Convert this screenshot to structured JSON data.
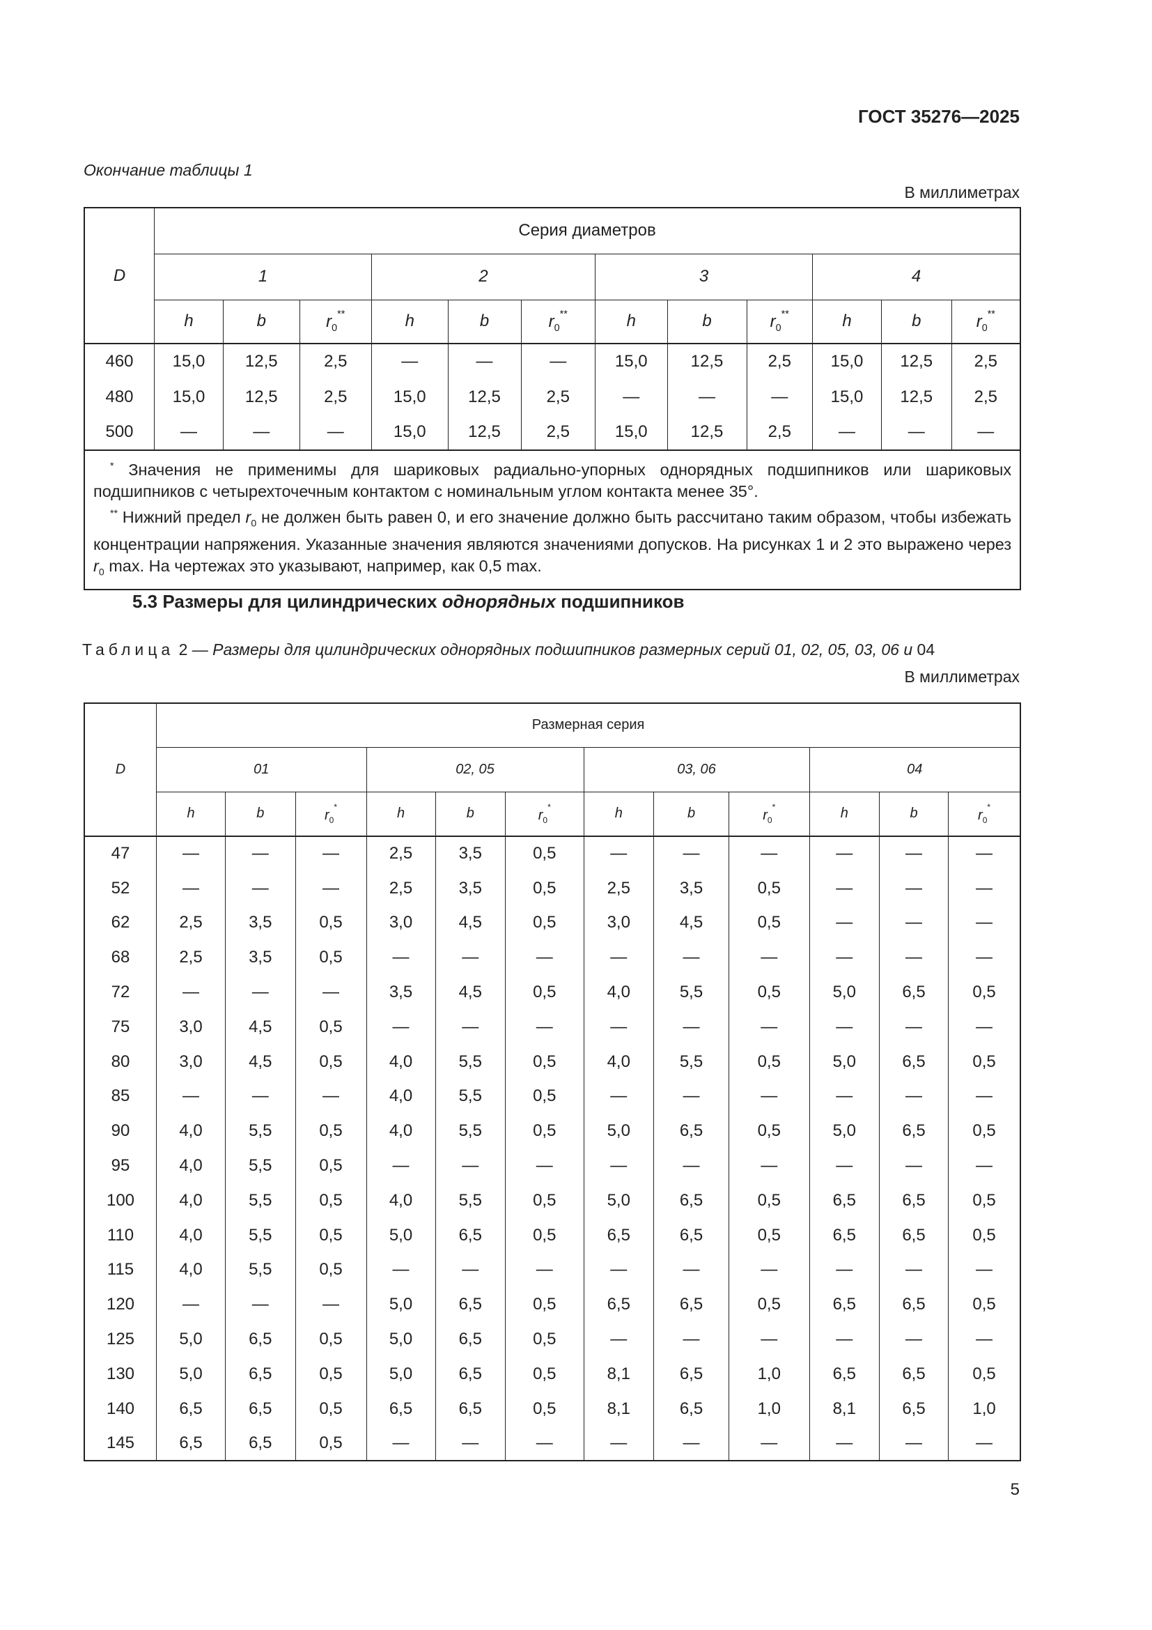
{
  "header": {
    "doc_id": "ГОСТ 35276—2025"
  },
  "table1": {
    "caption": "Окончание таблицы 1",
    "units": "В миллиметрах",
    "col_d": "D",
    "group_title": "Серия диаметров",
    "groups": [
      "1",
      "2",
      "3",
      "4"
    ],
    "subcols": [
      {
        "main": "h"
      },
      {
        "main": "b"
      },
      {
        "main": "r",
        "sub": "0",
        "sup": "**"
      }
    ],
    "rows": [
      [
        "460",
        "15,0",
        "12,5",
        "2,5",
        "—",
        "—",
        "—",
        "15,0",
        "12,5",
        "2,5",
        "15,0",
        "12,5",
        "2,5"
      ],
      [
        "480",
        "15,0",
        "12,5",
        "2,5",
        "15,0",
        "12,5",
        "2,5",
        "—",
        "—",
        "—",
        "15,0",
        "12,5",
        "2,5"
      ],
      [
        "500",
        "—",
        "—",
        "—",
        "15,0",
        "12,5",
        "2,5",
        "15,0",
        "12,5",
        "2,5",
        "—",
        "—",
        "—"
      ]
    ],
    "footnotes": [
      [
        {
          "sup": "*"
        },
        {
          "text": " Значения не применимы для шариковых радиально-упорных однорядных подшипников или шариковых подшипников с четырехточечным контактом с номинальным углом контакта менее 35°."
        }
      ],
      [
        {
          "sup": "**"
        },
        {
          "text": " Нижний предел "
        },
        {
          "var": "r",
          "sub": "0"
        },
        {
          "text": " не должен быть равен 0, и его значение должно быть рассчитано таким образом, чтобы избежать концентрации напряжения. Указанные значения являются значениями допусков. На рисунках 1 и 2 это выражено через "
        },
        {
          "var": "r",
          "sub": "0"
        },
        {
          "text": " max. На чертежах это указывают, например, как 0,5 max."
        }
      ]
    ]
  },
  "section": [
    {
      "text": "5.3 Размеры для цилиндрических "
    },
    {
      "em": "однорядных"
    },
    {
      "text": " подшипников"
    }
  ],
  "table2": {
    "caption": {
      "label": "Таблица",
      "number": "2 —",
      "title": "Размеры для цилиндрических однорядных подшипников размерных серий 01, 02, 05, 03, 06 и",
      "tail": "04"
    },
    "units": "В миллиметрах",
    "col_d": "D",
    "group_title": "Размерная серия",
    "groups": [
      "01",
      "02, 05",
      "03, 06",
      "04"
    ],
    "subcols": [
      {
        "main": "h"
      },
      {
        "main": "b"
      },
      {
        "main": "r",
        "sub": "0",
        "sup": "*"
      }
    ],
    "rows": [
      [
        "47",
        "—",
        "—",
        "—",
        "2,5",
        "3,5",
        "0,5",
        "—",
        "—",
        "—",
        "—",
        "—",
        "—"
      ],
      [
        "52",
        "—",
        "—",
        "—",
        "2,5",
        "3,5",
        "0,5",
        "2,5",
        "3,5",
        "0,5",
        "—",
        "—",
        "—"
      ],
      [
        "62",
        "2,5",
        "3,5",
        "0,5",
        "3,0",
        "4,5",
        "0,5",
        "3,0",
        "4,5",
        "0,5",
        "—",
        "—",
        "—"
      ],
      [
        "68",
        "2,5",
        "3,5",
        "0,5",
        "—",
        "—",
        "—",
        "—",
        "—",
        "—",
        "—",
        "—",
        "—"
      ],
      [
        "72",
        "—",
        "—",
        "—",
        "3,5",
        "4,5",
        "0,5",
        "4,0",
        "5,5",
        "0,5",
        "5,0",
        "6,5",
        "0,5"
      ],
      [
        "75",
        "3,0",
        "4,5",
        "0,5",
        "—",
        "—",
        "—",
        "—",
        "—",
        "—",
        "—",
        "—",
        "—"
      ],
      [
        "80",
        "3,0",
        "4,5",
        "0,5",
        "4,0",
        "5,5",
        "0,5",
        "4,0",
        "5,5",
        "0,5",
        "5,0",
        "6,5",
        "0,5"
      ],
      [
        "85",
        "—",
        "—",
        "—",
        "4,0",
        "5,5",
        "0,5",
        "—",
        "—",
        "—",
        "—",
        "—",
        "—"
      ],
      [
        "90",
        "4,0",
        "5,5",
        "0,5",
        "4,0",
        "5,5",
        "0,5",
        "5,0",
        "6,5",
        "0,5",
        "5,0",
        "6,5",
        "0,5"
      ],
      [
        "95",
        "4,0",
        "5,5",
        "0,5",
        "—",
        "—",
        "—",
        "—",
        "—",
        "—",
        "—",
        "—",
        "—"
      ],
      [
        "100",
        "4,0",
        "5,5",
        "0,5",
        "4,0",
        "5,5",
        "0,5",
        "5,0",
        "6,5",
        "0,5",
        "6,5",
        "6,5",
        "0,5"
      ],
      [
        "110",
        "4,0",
        "5,5",
        "0,5",
        "5,0",
        "6,5",
        "0,5",
        "6,5",
        "6,5",
        "0,5",
        "6,5",
        "6,5",
        "0,5"
      ],
      [
        "115",
        "4,0",
        "5,5",
        "0,5",
        "—",
        "—",
        "—",
        "—",
        "—",
        "—",
        "—",
        "—",
        "—"
      ],
      [
        "120",
        "—",
        "—",
        "—",
        "5,0",
        "6,5",
        "0,5",
        "6,5",
        "6,5",
        "0,5",
        "6,5",
        "6,5",
        "0,5"
      ],
      [
        "125",
        "5,0",
        "6,5",
        "0,5",
        "5,0",
        "6,5",
        "0,5",
        "—",
        "—",
        "—",
        "—",
        "—",
        "—"
      ],
      [
        "130",
        "5,0",
        "6,5",
        "0,5",
        "5,0",
        "6,5",
        "0,5",
        "8,1",
        "6,5",
        "1,0",
        "6,5",
        "6,5",
        "0,5"
      ],
      [
        "140",
        "6,5",
        "6,5",
        "0,5",
        "6,5",
        "6,5",
        "0,5",
        "8,1",
        "6,5",
        "1,0",
        "8,1",
        "6,5",
        "1,0"
      ],
      [
        "145",
        "6,5",
        "6,5",
        "0,5",
        "—",
        "—",
        "—",
        "—",
        "—",
        "—",
        "—",
        "—",
        "—"
      ]
    ]
  },
  "page_number": "5"
}
